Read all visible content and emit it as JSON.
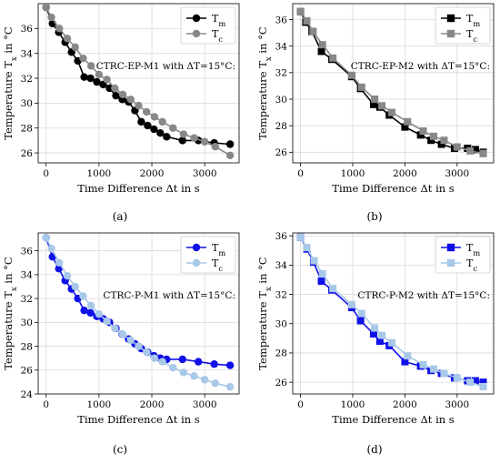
{
  "chart_data": [
    {
      "id": "a",
      "type": "line",
      "caption": "(a)",
      "annotation": "CTRC-EP-M1 with ΔT=15°C:",
      "xlabel": "Time Difference Δt in s",
      "ylabel": "Temperature T_x in °C",
      "xlim": [
        -150,
        3650
      ],
      "ylim": [
        25.2,
        38.0
      ],
      "xticks": [
        0,
        1000,
        2000,
        3000
      ],
      "yticks": [
        26,
        28,
        30,
        32,
        34,
        36
      ],
      "grid": true,
      "legend_position": "top-right",
      "series": [
        {
          "name": "T_m",
          "marker": "circle",
          "color": "#000000",
          "x": [
            0,
            120,
            240,
            360,
            480,
            600,
            720,
            840,
            960,
            1080,
            1200,
            1320,
            1440,
            1560,
            1680,
            1800,
            1920,
            2040,
            2160,
            2280,
            2580,
            2880,
            3180,
            3480
          ],
          "y": [
            37.7,
            36.4,
            35.7,
            34.9,
            34.1,
            33.4,
            32.1,
            32.0,
            31.7,
            31.5,
            31.2,
            30.6,
            30.3,
            30.1,
            29.4,
            28.5,
            28.2,
            27.9,
            27.6,
            27.3,
            27.0,
            27.0,
            26.8,
            26.7
          ]
        },
        {
          "name": "T_c",
          "marker": "circle",
          "color": "#888888",
          "x": [
            0,
            100,
            250,
            400,
            550,
            700,
            850,
            1000,
            1150,
            1300,
            1450,
            1600,
            1750,
            1900,
            2050,
            2200,
            2400,
            2600,
            2800,
            3000,
            3200,
            3480
          ],
          "y": [
            37.7,
            36.9,
            36.0,
            35.2,
            34.5,
            33.6,
            33.0,
            32.3,
            31.9,
            31.2,
            30.7,
            30.3,
            29.8,
            29.3,
            28.9,
            28.5,
            28.0,
            27.5,
            27.2,
            26.9,
            26.5,
            25.8
          ]
        }
      ]
    },
    {
      "id": "b",
      "type": "line",
      "caption": "(b)",
      "annotation": "CTRC-EP-M2 with ΔT=15°C:",
      "xlabel": "Time Difference Δt in s",
      "ylabel": "Temperature T_x in °C",
      "xlim": [
        -150,
        3700
      ],
      "ylim": [
        25.2,
        37.2
      ],
      "xticks": [
        0,
        1000,
        2000,
        3000
      ],
      "yticks": [
        26,
        28,
        30,
        32,
        34,
        36
      ],
      "grid": true,
      "legend_position": "top-right",
      "series": [
        {
          "name": "T_m",
          "marker": "square",
          "color": "#000000",
          "x": [
            0,
            100,
            220,
            400,
            600,
            980,
            1150,
            1400,
            1520,
            1700,
            2000,
            2300,
            2500,
            2700,
            2950,
            3200,
            3350,
            3500
          ],
          "y": [
            36.6,
            35.8,
            35.1,
            33.6,
            33.0,
            31.7,
            30.8,
            29.6,
            29.4,
            28.8,
            27.9,
            27.3,
            26.9,
            26.6,
            26.3,
            26.3,
            26.2,
            26.0
          ]
        },
        {
          "name": "T_c",
          "marker": "square",
          "color": "#888888",
          "x": [
            0,
            120,
            240,
            420,
            620,
            980,
            1170,
            1420,
            1560,
            1750,
            2050,
            2350,
            2550,
            2750,
            3000,
            3250,
            3500
          ],
          "y": [
            36.6,
            35.9,
            35.1,
            34.1,
            33.1,
            31.8,
            30.9,
            30.0,
            29.5,
            29.0,
            28.3,
            27.6,
            27.2,
            26.9,
            26.4,
            26.1,
            25.9
          ]
        }
      ]
    },
    {
      "id": "c",
      "type": "line",
      "caption": "(c)",
      "annotation": "CTRC-P-M1 with ΔT=15°C:",
      "xlabel": "Time Difference Δt in s",
      "ylabel": "Temperature T_x in °C",
      "xlim": [
        -150,
        3650
      ],
      "ylim": [
        24.0,
        37.5
      ],
      "xticks": [
        0,
        1000,
        2000,
        3000
      ],
      "yticks": [
        24,
        26,
        28,
        30,
        32,
        34,
        36
      ],
      "grid": true,
      "legend_position": "top-right",
      "series": [
        {
          "name": "T_m",
          "marker": "circle",
          "color": "#1010e8",
          "x": [
            0,
            120,
            240,
            360,
            480,
            600,
            720,
            840,
            960,
            1080,
            1200,
            1320,
            1440,
            1560,
            1680,
            1800,
            1920,
            2040,
            2160,
            2280,
            2580,
            2880,
            3180,
            3480
          ],
          "y": [
            37.1,
            35.5,
            34.5,
            33.5,
            32.8,
            32.0,
            31.0,
            30.8,
            30.5,
            30.3,
            30.0,
            29.5,
            29.0,
            28.6,
            28.2,
            27.8,
            27.5,
            27.2,
            27.0,
            26.9,
            26.9,
            26.7,
            26.5,
            26.4
          ]
        },
        {
          "name": "T_c",
          "marker": "circle",
          "color": "#a8c8e8",
          "x": [
            0,
            100,
            250,
            400,
            550,
            700,
            850,
            1000,
            1150,
            1300,
            1450,
            1600,
            1750,
            1900,
            2050,
            2200,
            2400,
            2600,
            2800,
            3000,
            3200,
            3480
          ],
          "y": [
            37.1,
            36.2,
            35.0,
            33.9,
            33.0,
            32.2,
            31.4,
            30.7,
            30.1,
            29.5,
            29.0,
            28.5,
            28.0,
            27.5,
            27.0,
            26.7,
            26.2,
            25.8,
            25.5,
            25.2,
            24.9,
            24.6
          ]
        }
      ]
    },
    {
      "id": "d",
      "type": "line",
      "caption": "(d)",
      "annotation": "CTRC-P-M2 with ΔT=15°C:",
      "xlabel": "Time Difference Δt in s",
      "ylabel": "Temperature T_x in °C",
      "xlim": [
        -150,
        3700
      ],
      "ylim": [
        25.2,
        36.2
      ],
      "xticks": [
        0,
        1000,
        2000,
        3000
      ],
      "yticks": [
        26,
        28,
        30,
        32,
        34,
        36
      ],
      "grid": true,
      "legend_position": "top-right",
      "series": [
        {
          "name": "T_m",
          "marker": "square",
          "color": "#1010e8",
          "x": [
            0,
            120,
            250,
            400,
            600,
            980,
            1150,
            1400,
            1520,
            1700,
            2000,
            2300,
            2500,
            2700,
            2950,
            3200,
            3350,
            3500
          ],
          "y": [
            35.9,
            35.1,
            34.2,
            32.9,
            32.3,
            31.1,
            30.2,
            29.3,
            28.8,
            28.5,
            27.4,
            27.1,
            26.8,
            26.6,
            26.3,
            26.1,
            26.1,
            26.0
          ]
        },
        {
          "name": "T_c",
          "marker": "square",
          "color": "#a8c8e8",
          "x": [
            0,
            120,
            260,
            420,
            620,
            980,
            1170,
            1420,
            1560,
            1750,
            2050,
            2350,
            2550,
            2750,
            3000,
            3250,
            3500
          ],
          "y": [
            35.9,
            35.2,
            34.3,
            33.4,
            32.4,
            31.3,
            30.7,
            29.7,
            29.2,
            28.7,
            27.8,
            27.2,
            26.9,
            26.6,
            26.3,
            26.0,
            25.7
          ]
        }
      ]
    }
  ]
}
